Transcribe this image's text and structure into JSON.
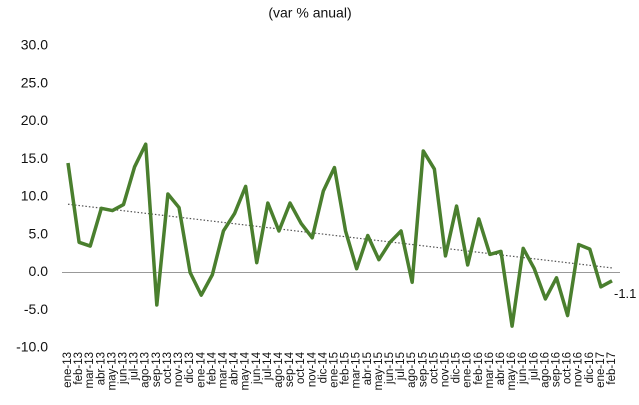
{
  "chart_data": {
    "type": "line",
    "title": "(var % anual)",
    "categories": [
      "ene-13",
      "feb-13",
      "mar-13",
      "abr-13",
      "may-13",
      "jun-13",
      "jul-13",
      "ago-13",
      "sep-13",
      "oct-13",
      "nov-13",
      "dic-13",
      "ene-14",
      "feb-14",
      "mar-14",
      "abr-14",
      "may-14",
      "jun-14",
      "jul-14",
      "ago-14",
      "sep-14",
      "oct-14",
      "nov-14",
      "dic-14",
      "ene-15",
      "feb-15",
      "mar-15",
      "abr-15",
      "may-15",
      "jun-15",
      "jul-15",
      "ago-15",
      "sep-15",
      "oct-15",
      "nov-15",
      "dic-15",
      "ene-16",
      "feb-16",
      "mar-16",
      "abr-16",
      "may-16",
      "jun-16",
      "jul-16",
      "ago-16",
      "sep-16",
      "oct-16",
      "nov-16",
      "dic-16",
      "ene-17",
      "feb-17"
    ],
    "series": [
      {
        "color": "#4a7f2e",
        "values": [
          14.5,
          4,
          3.5,
          8.5,
          8.2,
          9,
          14,
          17,
          -4.3,
          10.4,
          8.6,
          0,
          -3,
          -0.3,
          5.5,
          7.8,
          11.4,
          1.3,
          9.2,
          5.5,
          9.2,
          6.5,
          4.6,
          10.8,
          13.9,
          5.5,
          0.5,
          4.9,
          1.7,
          4,
          5.5,
          -1.3,
          16.1,
          13.7,
          2.2,
          8.8,
          1,
          7.1,
          2.4,
          2.8,
          -7.1,
          3.2,
          0.5,
          -3.5,
          -0.7,
          -5.7,
          3.7,
          3.1,
          -1.9,
          -1.1
        ],
        "value_labels": [
          null,
          null,
          null,
          null,
          null,
          null,
          null,
          null,
          null,
          null,
          null,
          null,
          null,
          null,
          null,
          null,
          null,
          null,
          null,
          null,
          null,
          null,
          null,
          null,
          null,
          null,
          null,
          null,
          null,
          null,
          null,
          null,
          null,
          null,
          null,
          null,
          null,
          null,
          null,
          null,
          null,
          null,
          null,
          null,
          null,
          null,
          null,
          null,
          null,
          "-1.1"
        ]
      }
    ],
    "trendline": true,
    "ylim": [
      -10,
      30
    ],
    "yticks": [
      {
        "value": 30,
        "label": "30.0"
      },
      {
        "value": 25,
        "label": "25.0"
      },
      {
        "value": 20,
        "label": "20.0"
      },
      {
        "value": 15,
        "label": "15.0"
      },
      {
        "value": 10,
        "label": "10.0"
      },
      {
        "value": 5,
        "label": "5.0"
      },
      {
        "value": 0,
        "label": "0.0"
      },
      {
        "value": -5,
        "label": "-5.0"
      },
      {
        "value": -10,
        "label": "-10.0"
      }
    ]
  }
}
